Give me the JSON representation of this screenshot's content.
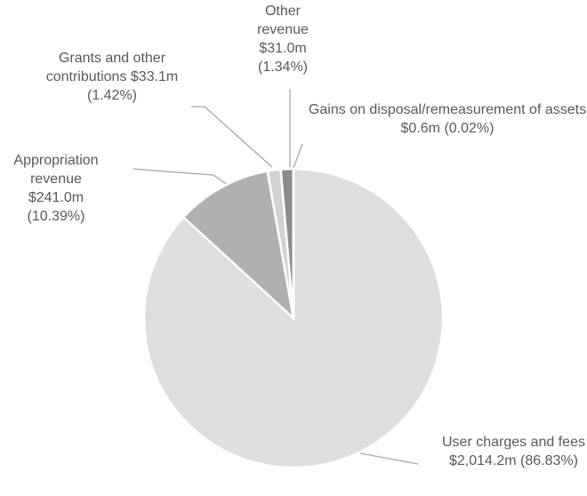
{
  "chart_data": {
    "type": "pie",
    "categories": [
      "User charges and fees",
      "Appropriation revenue",
      "Grants and other contributions",
      "Other revenue",
      "Gains on disposal/remeasurement of assets"
    ],
    "values": [
      2014.2,
      241.0,
      33.1,
      31.0,
      0.6
    ],
    "value_labels": [
      "$2,014.2m (86.83%)",
      "$241.0m (10.39%)",
      "$33.1m (1.42%)",
      "$31.0m (1.34%)",
      "$0.6m (0.02%)"
    ],
    "colors": [
      "#dedede",
      "#b0b0b0",
      "#d2d2d2",
      "#8c8c8c",
      "#5a5a5a"
    ]
  }
}
